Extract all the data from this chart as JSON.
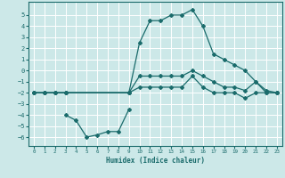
{
  "xlabel": "Humidex (Indice chaleur)",
  "background_color": "#cce8e8",
  "grid_color": "#ffffff",
  "line_color": "#1a6b6b",
  "xlim": [
    -0.5,
    23.5
  ],
  "ylim": [
    -6.8,
    6.2
  ],
  "xticks": [
    0,
    1,
    2,
    3,
    4,
    5,
    6,
    7,
    8,
    9,
    10,
    11,
    12,
    13,
    14,
    15,
    16,
    17,
    18,
    19,
    20,
    21,
    22,
    23
  ],
  "yticks": [
    -6,
    -5,
    -4,
    -3,
    -2,
    -1,
    0,
    1,
    2,
    3,
    4,
    5
  ],
  "series_main_x": [
    0,
    1,
    2,
    3,
    9,
    10,
    11,
    12,
    13,
    14,
    15,
    16,
    17,
    18,
    19,
    20,
    21,
    22,
    23
  ],
  "series_main_y": [
    -2,
    -2,
    -2,
    -2,
    -2,
    2.5,
    4.5,
    4.5,
    5.0,
    5.0,
    5.5,
    4.0,
    1.5,
    1.0,
    0.5,
    0.0,
    -1.0,
    -1.8,
    -2.0
  ],
  "series_mid1_x": [
    0,
    1,
    2,
    3,
    9,
    10,
    11,
    12,
    13,
    14,
    15,
    16,
    17,
    18,
    19,
    20,
    21,
    22,
    23
  ],
  "series_mid1_y": [
    -2,
    -2,
    -2,
    -2,
    -2,
    -0.5,
    -0.5,
    -0.5,
    -0.5,
    -0.5,
    0.0,
    -0.5,
    -1.0,
    -1.5,
    -1.5,
    -1.8,
    -1.0,
    -2.0,
    -2.0
  ],
  "series_mid2_x": [
    0,
    1,
    2,
    3,
    9,
    10,
    11,
    12,
    13,
    14,
    15,
    16,
    17,
    18,
    19,
    20,
    21,
    22,
    23
  ],
  "series_mid2_y": [
    -2,
    -2,
    -2,
    -2,
    -2,
    -1.5,
    -1.5,
    -1.5,
    -1.5,
    -1.5,
    -0.5,
    -1.5,
    -2.0,
    -2.0,
    -2.0,
    -2.5,
    -2.0,
    -2.0,
    -2.0
  ],
  "series_low_x": [
    3,
    4,
    5,
    6,
    7,
    8,
    9
  ],
  "series_low_y": [
    -4.0,
    -4.5,
    -6.0,
    -5.8,
    -5.5,
    -5.5,
    -3.5
  ]
}
